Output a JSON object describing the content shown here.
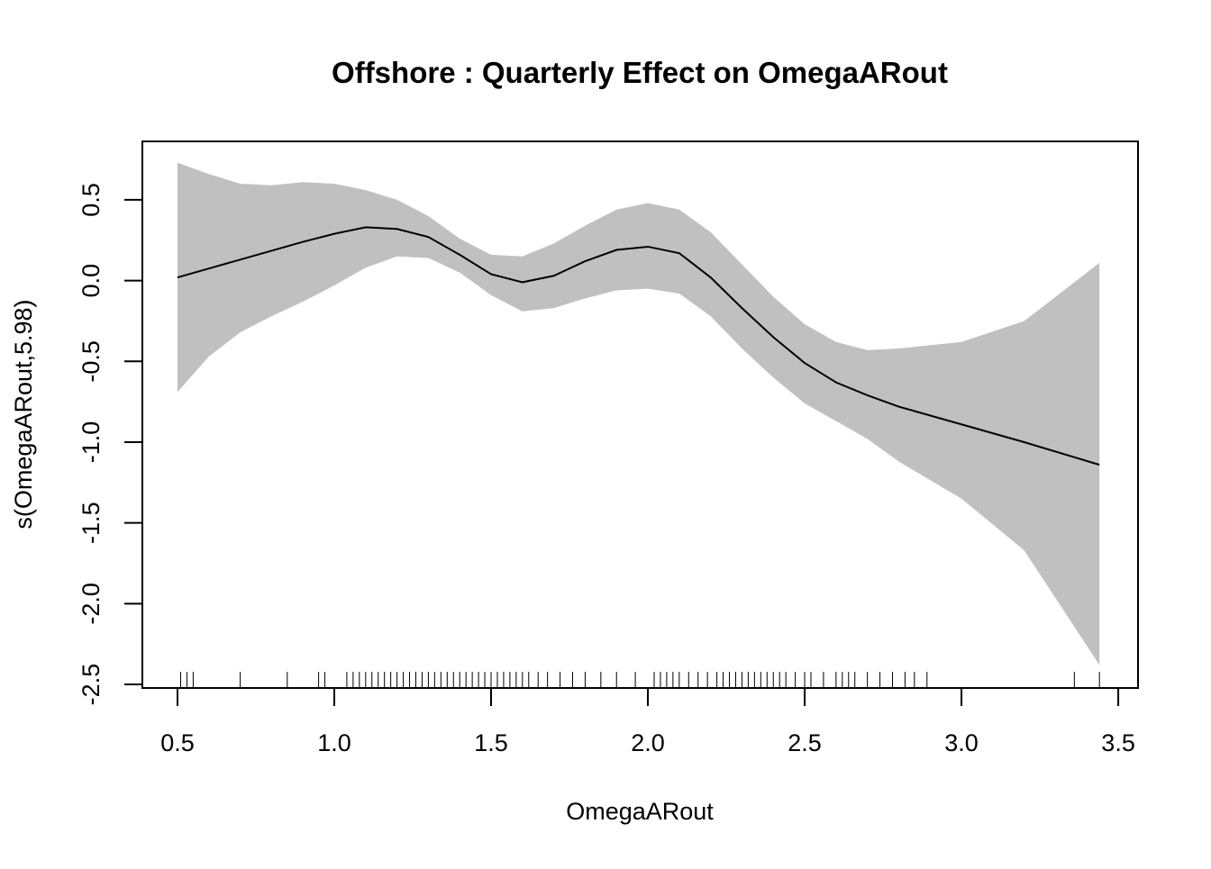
{
  "chart_data": {
    "type": "smooth",
    "title": "Offshore : Quarterly Effect on OmegaARout",
    "xlabel": "OmegaARout",
    "ylabel": "s(OmegaARout,5.98)",
    "x": [
      0.5,
      0.6,
      0.7,
      0.8,
      0.9,
      1.0,
      1.1,
      1.2,
      1.3,
      1.4,
      1.5,
      1.6,
      1.7,
      1.8,
      1.9,
      2.0,
      2.1,
      2.2,
      2.3,
      2.4,
      2.5,
      2.6,
      2.7,
      2.8,
      3.0,
      3.2,
      3.44
    ],
    "fit": [
      0.02,
      0.075,
      0.13,
      0.185,
      0.24,
      0.29,
      0.33,
      0.32,
      0.27,
      0.16,
      0.04,
      -0.01,
      0.03,
      0.12,
      0.19,
      0.21,
      0.17,
      0.02,
      -0.17,
      -0.35,
      -0.51,
      -0.63,
      -0.71,
      -0.78,
      -0.89,
      -1.0,
      -1.14
    ],
    "upper": [
      0.73,
      0.66,
      0.6,
      0.59,
      0.61,
      0.6,
      0.56,
      0.5,
      0.4,
      0.26,
      0.16,
      0.15,
      0.23,
      0.34,
      0.44,
      0.48,
      0.44,
      0.3,
      0.1,
      -0.1,
      -0.27,
      -0.38,
      -0.43,
      -0.42,
      -0.38,
      -0.25,
      0.11
    ],
    "lower": [
      -0.69,
      -0.47,
      -0.32,
      -0.22,
      -0.13,
      -0.03,
      0.08,
      0.15,
      0.14,
      0.05,
      -0.09,
      -0.19,
      -0.17,
      -0.11,
      -0.06,
      -0.05,
      -0.08,
      -0.22,
      -0.42,
      -0.6,
      -0.76,
      -0.87,
      -0.98,
      -1.12,
      -1.35,
      -1.67,
      -2.38
    ],
    "rug": [
      0.51,
      0.53,
      0.55,
      0.7,
      0.85,
      0.95,
      0.97,
      1.04,
      1.06,
      1.08,
      1.1,
      1.12,
      1.14,
      1.16,
      1.18,
      1.2,
      1.22,
      1.24,
      1.26,
      1.28,
      1.3,
      1.32,
      1.34,
      1.36,
      1.38,
      1.4,
      1.42,
      1.44,
      1.46,
      1.48,
      1.5,
      1.52,
      1.54,
      1.56,
      1.58,
      1.6,
      1.62,
      1.65,
      1.68,
      1.72,
      1.76,
      1.8,
      1.85,
      1.9,
      1.96,
      2.02,
      2.04,
      2.06,
      2.08,
      2.1,
      2.13,
      2.16,
      2.19,
      2.22,
      2.24,
      2.26,
      2.28,
      2.3,
      2.32,
      2.34,
      2.36,
      2.38,
      2.4,
      2.42,
      2.44,
      2.47,
      2.5,
      2.52,
      2.56,
      2.6,
      2.62,
      2.64,
      2.66,
      2.7,
      2.74,
      2.78,
      2.82,
      2.85,
      2.89,
      3.36,
      3.44
    ],
    "band_color": "#c0c0c0",
    "line_color": "#000000",
    "xlim": [
      0.388,
      3.563
    ],
    "ylim": [
      -2.522,
      0.862
    ],
    "xticks": [
      0.5,
      {
        "value": 1,
        "label": "1.0"
      },
      1.5,
      {
        "value": 2,
        "label": "2.0"
      },
      2.5,
      {
        "value": 3,
        "label": "3.0"
      },
      3.5
    ],
    "yticks": [
      -2.5,
      {
        "value": -2,
        "label": "-2.0"
      },
      -1.5,
      {
        "value": -1,
        "label": "-1.0"
      },
      -0.5,
      {
        "value": 0,
        "label": "0.0"
      },
      0.5
    ]
  }
}
